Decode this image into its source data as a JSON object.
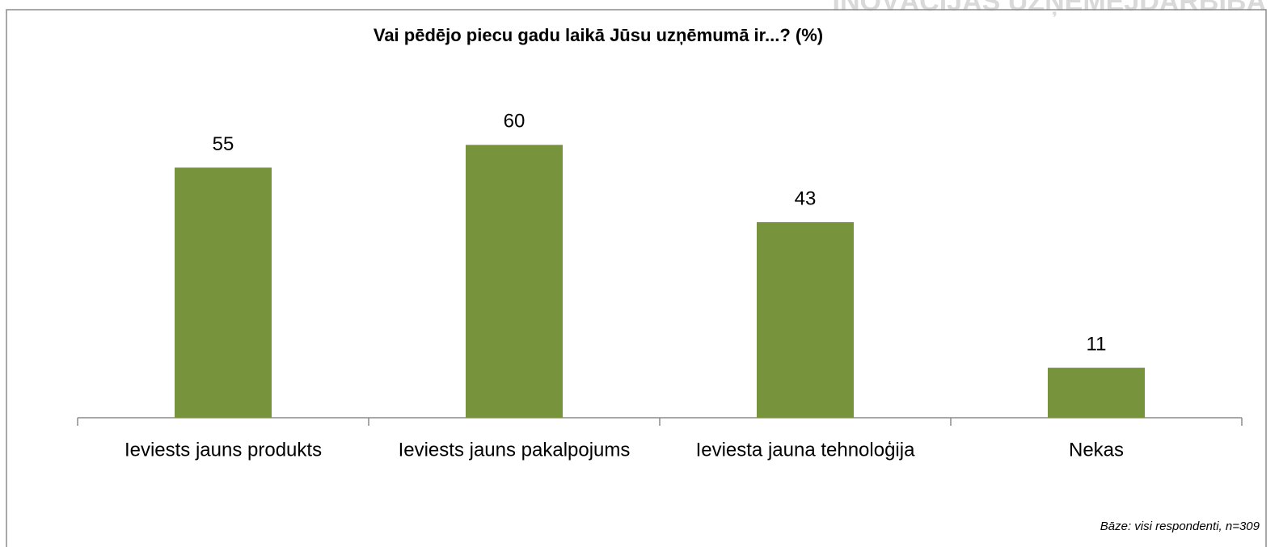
{
  "header": "INOVĀCIJAS UZŅĒMĒJDARBĪBĀ",
  "chart_data": {
    "type": "bar",
    "title": "Vai pēdējo piecu gadu laikā Jūsu uzņēmumā ir...? (%)",
    "categories": [
      "Ieviests jauns produkts",
      "Ieviests jauns pakalpojums",
      "Ieviesta jauna tehnoloģija",
      "Nekas"
    ],
    "values": [
      55,
      60,
      43,
      11
    ],
    "color": "#77933c",
    "ylim": [
      0,
      70
    ],
    "note": "Bāze: visi respondenti, n=309"
  }
}
